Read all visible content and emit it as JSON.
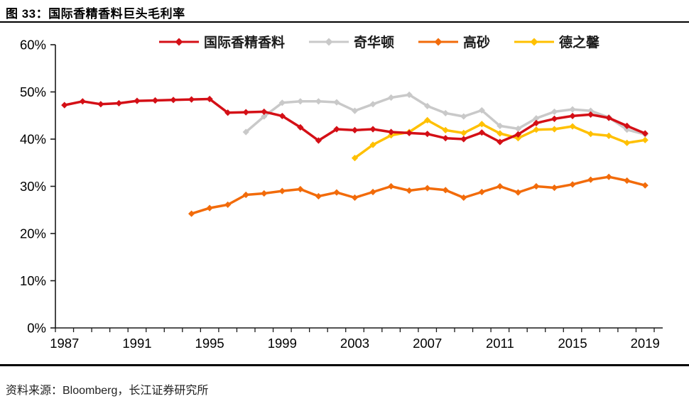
{
  "header": {
    "title": "图 33：国际香精香料巨头毛利率"
  },
  "footer": {
    "source": "资料来源：Bloomberg，长江证券研究所"
  },
  "chart_data": {
    "type": "line",
    "title": "国际香精香料巨头毛利率",
    "x": [
      1987,
      1988,
      1989,
      1990,
      1991,
      1992,
      1993,
      1994,
      1995,
      1996,
      1997,
      1998,
      1999,
      2000,
      2001,
      2002,
      2003,
      2004,
      2005,
      2006,
      2007,
      2008,
      2009,
      2010,
      2011,
      2012,
      2013,
      2014,
      2015,
      2016,
      2017,
      2018,
      2019
    ],
    "x_tick_labels": [
      "1987",
      "1991",
      "1995",
      "1999",
      "2003",
      "2007",
      "2011",
      "2015",
      "2019"
    ],
    "y_axis": {
      "min": 0,
      "max": 60,
      "step": 10,
      "tick_labels": [
        "0%",
        "10%",
        "20%",
        "30%",
        "40%",
        "50%",
        "60%"
      ]
    },
    "grid": false,
    "legend_position": "top",
    "marker": "diamond",
    "series": [
      {
        "name": "国际香精香料",
        "color": "#D40F16",
        "values": [
          47.2,
          48.0,
          47.4,
          47.6,
          48.1,
          48.2,
          48.3,
          48.4,
          48.5,
          45.6,
          45.7,
          45.8,
          44.9,
          42.5,
          39.7,
          42.1,
          41.9,
          42.1,
          41.5,
          41.3,
          41.1,
          40.2,
          40.0,
          41.4,
          39.4,
          41.0,
          43.4,
          44.3,
          44.9,
          45.2,
          44.5,
          42.8,
          41.2
        ]
      },
      {
        "name": "奇华顿",
        "color": "#C9C9C9",
        "values": [
          null,
          null,
          null,
          null,
          null,
          null,
          null,
          null,
          null,
          null,
          41.5,
          44.8,
          47.7,
          48.0,
          48.0,
          47.8,
          46.0,
          47.4,
          48.8,
          49.4,
          47.0,
          45.5,
          44.8,
          46.1,
          42.8,
          42.2,
          44.4,
          45.8,
          46.3,
          46.0,
          44.6,
          42.0,
          41.0
        ]
      },
      {
        "name": "高砂",
        "color": "#F26B0A",
        "values": [
          null,
          null,
          null,
          null,
          null,
          null,
          null,
          24.2,
          25.4,
          26.1,
          28.2,
          28.5,
          29.0,
          29.4,
          27.9,
          28.7,
          27.6,
          28.8,
          30.0,
          29.1,
          29.6,
          29.2,
          27.6,
          28.8,
          30.0,
          28.7,
          30.0,
          29.7,
          30.4,
          31.4,
          32.0,
          31.2,
          30.2
        ]
      },
      {
        "name": "德之馨",
        "color": "#FFC000",
        "values": [
          null,
          null,
          null,
          null,
          null,
          null,
          null,
          null,
          null,
          null,
          null,
          null,
          null,
          null,
          null,
          null,
          36.0,
          38.8,
          40.8,
          41.5,
          44.0,
          41.9,
          41.3,
          43.2,
          41.2,
          40.2,
          42.0,
          42.1,
          42.7,
          41.1,
          40.7,
          39.2,
          39.8
        ]
      }
    ]
  }
}
